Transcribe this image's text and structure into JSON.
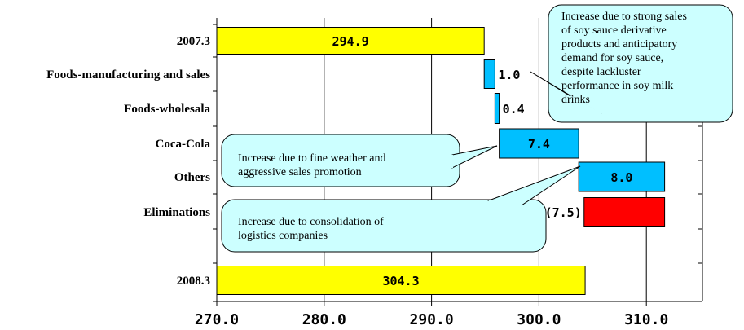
{
  "chart_data": {
    "type": "bar",
    "orientation": "horizontal",
    "subtype": "waterfall",
    "categories": [
      "2007.3",
      "Foods-manufacturing and sales",
      "Foods-wholesala",
      "Coca-Cola",
      "Others",
      "Eliminations",
      "2008.3"
    ],
    "values": [
      294.9,
      1.0,
      0.4,
      7.4,
      8.0,
      -7.5,
      304.3
    ],
    "value_labels": [
      "294.9",
      "1.0",
      "0.4",
      "7.4",
      "8.0",
      "(7.5)",
      "304.3"
    ],
    "bar_kinds": [
      "total",
      "increase",
      "increase",
      "increase",
      "increase",
      "decrease",
      "total"
    ],
    "x_ticks": [
      "270.0",
      "280.0",
      "290.0",
      "300.0",
      "310.0"
    ],
    "xlim": [
      270,
      315
    ],
    "grid": true,
    "colors": {
      "total": "#ffff00",
      "increase": "#00bfff",
      "decrease": "#ff0000",
      "callout": "#ccffff"
    },
    "annotations": [
      {
        "target": "Foods-manufacturing and sales",
        "lines": [
          "Increase due to strong sales",
          "of soy sauce derivative",
          "products and anticipatory",
          "demand for soy sauce,",
          "despite lackluster",
          "performance in soy milk",
          "drinks"
        ]
      },
      {
        "target": "Coca-Cola",
        "lines": [
          "Increase due to fine weather and",
          "aggressive sales promotion"
        ]
      },
      {
        "target": "Others",
        "lines": [
          "Increase due to consolidation of",
          "logistics companies"
        ]
      }
    ]
  }
}
